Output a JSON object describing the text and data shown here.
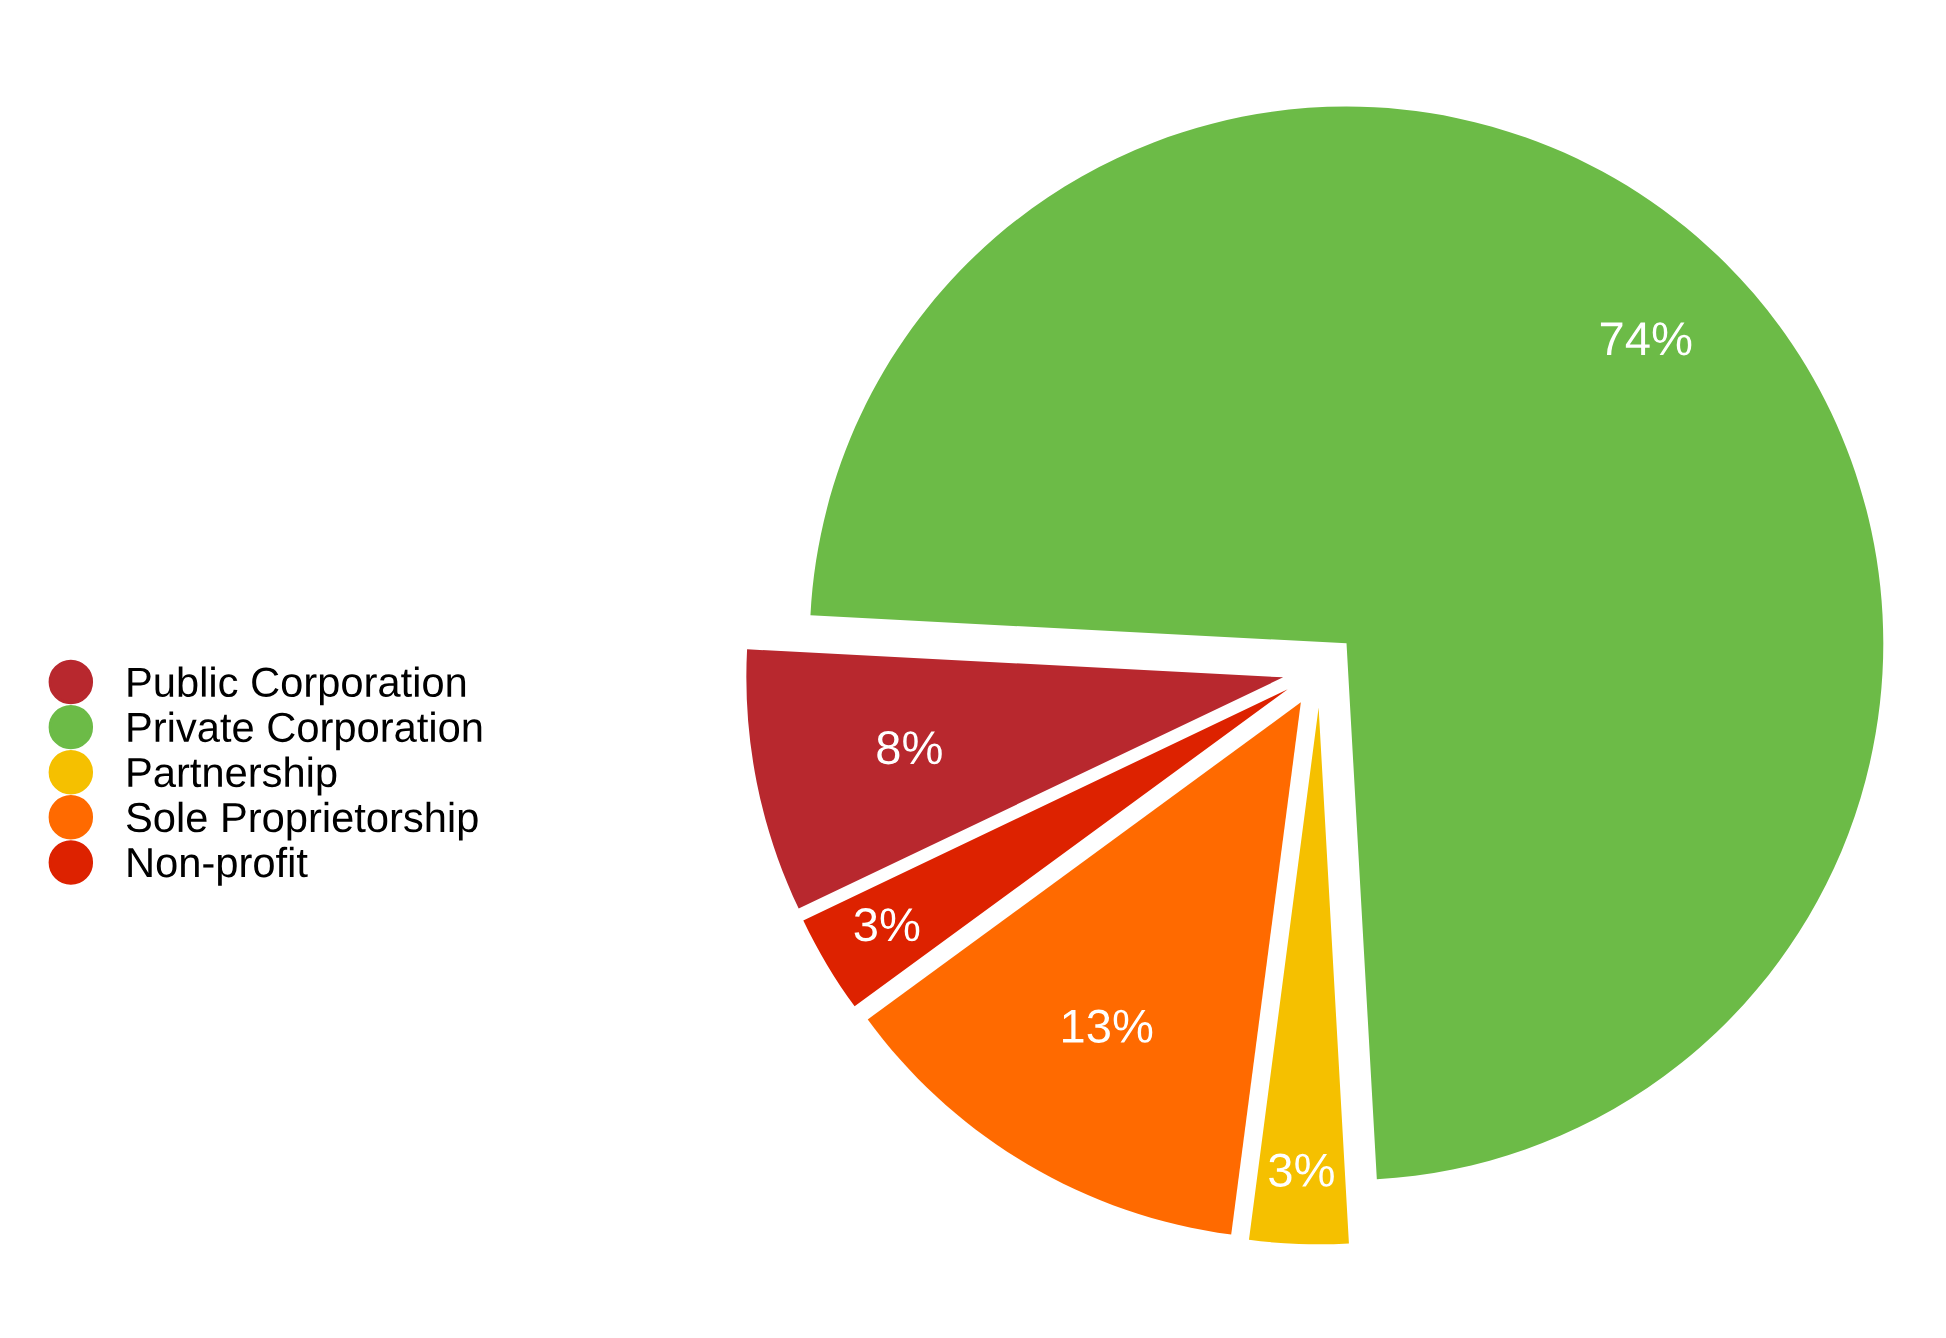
{
  "chart_data": {
    "type": "pie",
    "categories": [
      "Public Corporation",
      "Private Corporation",
      "Partnership",
      "Sole Proprietorship",
      "Non-profit"
    ],
    "values": [
      8,
      74,
      3,
      13,
      3
    ],
    "value_labels": [
      "8%",
      "74%",
      "3%",
      "13%",
      "3%"
    ],
    "colors": [
      "#b8282e",
      "#6cbb47",
      "#f5c000",
      "#ff6a00",
      "#dd2200"
    ],
    "legend": "left"
  }
}
